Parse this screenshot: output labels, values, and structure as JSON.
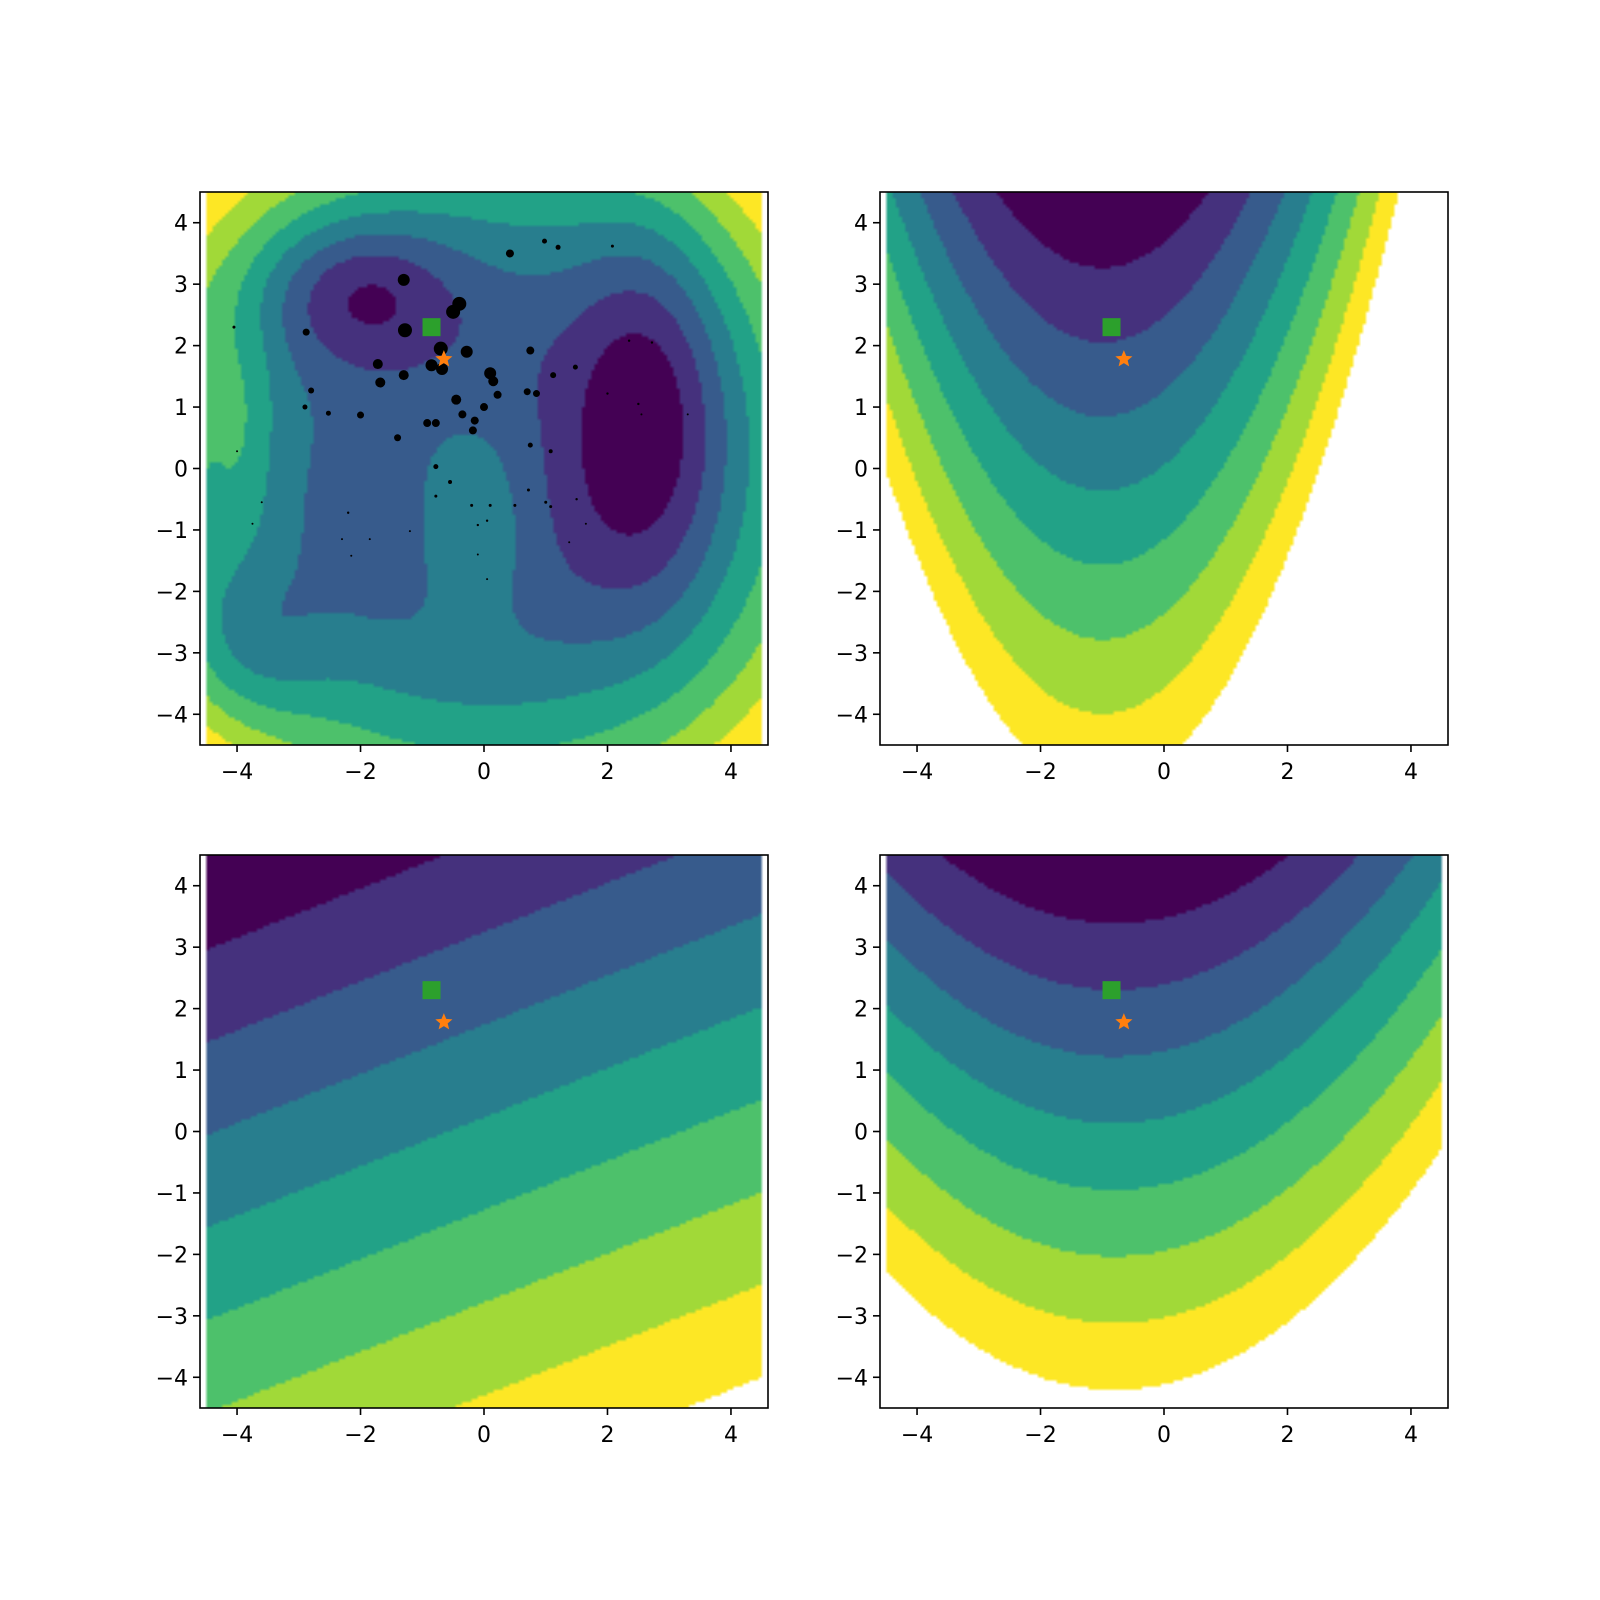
{
  "chart_data": [
    {
      "type": "contour",
      "panel": "top-left",
      "xlim": [
        -4.6,
        4.6
      ],
      "ylim": [
        -4.5,
        4.5
      ],
      "xticks": [
        "−4",
        "−2",
        "0",
        "2",
        "4"
      ],
      "yticks": [
        "−4",
        "−3",
        "−2",
        "−1",
        "0",
        "1",
        "2",
        "3",
        "4"
      ],
      "levels": 8,
      "colormap": "viridis",
      "markers": {
        "square": {
          "x": -0.85,
          "y": 2.3,
          "color": "#2ca02c"
        },
        "star": {
          "x": -0.65,
          "y": 1.78,
          "color": "#ff7f0e"
        }
      },
      "scatter": [
        {
          "x": -1.3,
          "y": 3.07,
          "s": 6
        },
        {
          "x": -0.4,
          "y": 2.68,
          "s": 7
        },
        {
          "x": -0.5,
          "y": 2.55,
          "s": 7
        },
        {
          "x": -1.28,
          "y": 2.25,
          "s": 7
        },
        {
          "x": -0.7,
          "y": 1.95,
          "s": 7
        },
        {
          "x": -0.28,
          "y": 1.9,
          "s": 6
        },
        {
          "x": -0.85,
          "y": 1.68,
          "s": 6
        },
        {
          "x": -0.68,
          "y": 1.62,
          "s": 6
        },
        {
          "x": -1.72,
          "y": 1.7,
          "s": 5
        },
        {
          "x": -1.3,
          "y": 1.52,
          "s": 5
        },
        {
          "x": -1.68,
          "y": 1.4,
          "s": 5
        },
        {
          "x": 0.1,
          "y": 1.55,
          "s": 6
        },
        {
          "x": 0.15,
          "y": 1.42,
          "s": 5
        },
        {
          "x": 0.22,
          "y": 1.2,
          "s": 4
        },
        {
          "x": -0.45,
          "y": 1.12,
          "s": 5
        },
        {
          "x": 0.0,
          "y": 1.0,
          "s": 4
        },
        {
          "x": -0.35,
          "y": 0.88,
          "s": 4
        },
        {
          "x": -0.15,
          "y": 0.78,
          "s": 4
        },
        {
          "x": -0.92,
          "y": 0.74,
          "s": 4
        },
        {
          "x": -0.78,
          "y": 0.74,
          "s": 4
        },
        {
          "x": -0.18,
          "y": 0.62,
          "s": 4
        },
        {
          "x": -1.4,
          "y": 0.5,
          "s": 3.5
        },
        {
          "x": 0.75,
          "y": 1.92,
          "s": 4
        },
        {
          "x": 0.7,
          "y": 1.25,
          "s": 3.5
        },
        {
          "x": 0.85,
          "y": 1.22,
          "s": 3.5
        },
        {
          "x": 1.12,
          "y": 1.52,
          "s": 3
        },
        {
          "x": 1.48,
          "y": 1.65,
          "s": 2.5
        },
        {
          "x": 0.42,
          "y": 3.5,
          "s": 4
        },
        {
          "x": 0.98,
          "y": 3.7,
          "s": 2.5
        },
        {
          "x": 1.2,
          "y": 3.6,
          "s": 2.5
        },
        {
          "x": 2.08,
          "y": 3.62,
          "s": 1.5
        },
        {
          "x": -2.88,
          "y": 2.22,
          "s": 3.5
        },
        {
          "x": -2.8,
          "y": 1.27,
          "s": 3
        },
        {
          "x": -2.9,
          "y": 1.0,
          "s": 2.5
        },
        {
          "x": -2.52,
          "y": 0.9,
          "s": 2.5
        },
        {
          "x": -2.0,
          "y": 0.87,
          "s": 3.5
        },
        {
          "x": -4.05,
          "y": 2.3,
          "s": 1.5
        },
        {
          "x": 0.75,
          "y": 0.38,
          "s": 2.5
        },
        {
          "x": 1.08,
          "y": 0.28,
          "s": 2
        },
        {
          "x": -0.78,
          "y": 0.03,
          "s": 2.5
        },
        {
          "x": -0.55,
          "y": -0.22,
          "s": 2
        },
        {
          "x": -0.78,
          "y": -0.45,
          "s": 1.5
        },
        {
          "x": -0.2,
          "y": -0.6,
          "s": 1.5
        },
        {
          "x": 0.1,
          "y": -0.6,
          "s": 1.5
        },
        {
          "x": 0.72,
          "y": -0.35,
          "s": 1.5
        },
        {
          "x": 0.5,
          "y": -0.6,
          "s": 1.5
        },
        {
          "x": 1.0,
          "y": -0.55,
          "s": 1.5
        },
        {
          "x": 1.08,
          "y": -0.62,
          "s": 1.5
        },
        {
          "x": 1.5,
          "y": -0.5,
          "s": 1.2
        },
        {
          "x": -0.1,
          "y": -0.92,
          "s": 1.2
        },
        {
          "x": 0.05,
          "y": -0.85,
          "s": 1.2
        },
        {
          "x": -2.2,
          "y": -0.72,
          "s": 1.2
        },
        {
          "x": -2.3,
          "y": -1.15,
          "s": 1
        },
        {
          "x": -1.85,
          "y": -1.15,
          "s": 1
        },
        {
          "x": -1.2,
          "y": -1.02,
          "s": 1
        },
        {
          "x": -0.1,
          "y": -1.4,
          "s": 1
        },
        {
          "x": 0.05,
          "y": -1.8,
          "s": 1
        },
        {
          "x": -2.15,
          "y": -1.42,
          "s": 1
        },
        {
          "x": 1.38,
          "y": -1.2,
          "s": 1
        },
        {
          "x": 1.65,
          "y": -0.9,
          "s": 1
        },
        {
          "x": 2.0,
          "y": 1.22,
          "s": 1.2
        },
        {
          "x": 2.35,
          "y": 2.08,
          "s": 1.2
        },
        {
          "x": 2.72,
          "y": 2.05,
          "s": 1.2
        },
        {
          "x": 2.5,
          "y": 1.05,
          "s": 1.2
        },
        {
          "x": 2.55,
          "y": 0.88,
          "s": 1
        },
        {
          "x": 3.3,
          "y": 0.88,
          "s": 1
        },
        {
          "x": -4.0,
          "y": 0.28,
          "s": 1
        },
        {
          "x": -3.6,
          "y": -0.55,
          "s": 1
        },
        {
          "x": -3.75,
          "y": -0.9,
          "s": 1
        }
      ]
    },
    {
      "type": "contour",
      "panel": "top-right",
      "xlim": [
        -4.6,
        4.6
      ],
      "ylim": [
        -4.5,
        4.5
      ],
      "xticks": [
        "−4",
        "−2",
        "0",
        "2",
        "4"
      ],
      "yticks": [
        "−4",
        "−3",
        "−2",
        "−1",
        "0",
        "1",
        "2",
        "3",
        "4"
      ],
      "levels": 8,
      "colormap": "viridis",
      "markers": {
        "square": {
          "x": -0.85,
          "y": 2.3,
          "color": "#2ca02c"
        },
        "star": {
          "x": -0.65,
          "y": 1.78,
          "color": "#ff7f0e"
        }
      }
    },
    {
      "type": "contour",
      "panel": "bottom-left",
      "xlim": [
        -4.6,
        4.6
      ],
      "ylim": [
        -4.5,
        4.5
      ],
      "xticks": [
        "−4",
        "−2",
        "0",
        "2",
        "4"
      ],
      "yticks": [
        "−4",
        "−3",
        "−2",
        "−1",
        "0",
        "1",
        "2",
        "3",
        "4"
      ],
      "levels": 8,
      "colormap": "viridis",
      "markers": {
        "square": {
          "x": -0.85,
          "y": 2.3,
          "color": "#2ca02c"
        },
        "star": {
          "x": -0.65,
          "y": 1.78,
          "color": "#ff7f0e"
        }
      }
    },
    {
      "type": "contour",
      "panel": "bottom-right",
      "xlim": [
        -4.6,
        4.6
      ],
      "ylim": [
        -4.5,
        4.5
      ],
      "xticks": [
        "−4",
        "−2",
        "0",
        "2",
        "4"
      ],
      "yticks": [
        "−4",
        "−3",
        "−2",
        "−1",
        "0",
        "1",
        "2",
        "3",
        "4"
      ],
      "levels": 8,
      "colormap": "viridis",
      "markers": {
        "square": {
          "x": -0.85,
          "y": 2.3,
          "color": "#2ca02c"
        },
        "star": {
          "x": -0.65,
          "y": 1.78,
          "color": "#ff7f0e"
        }
      }
    }
  ]
}
